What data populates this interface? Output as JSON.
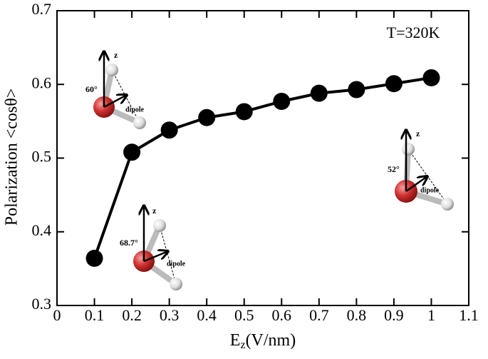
{
  "chart_data": {
    "type": "line",
    "xlabel": [
      "E",
      "z",
      "(V/nm)"
    ],
    "ylabel": "Polarization <cosθ>",
    "x": [
      0.1,
      0.2,
      0.3,
      0.4,
      0.5,
      0.6,
      0.7,
      0.8,
      0.9,
      1.0
    ],
    "series": [
      {
        "color": "#000000",
        "values": [
          0.364,
          0.508,
          0.538,
          0.555,
          0.563,
          0.577,
          0.588,
          0.593,
          0.601,
          0.609
        ]
      }
    ],
    "xlim": [
      0,
      1.1
    ],
    "xticks": [
      0,
      0.1,
      0.2,
      0.3,
      0.4,
      0.5,
      0.6,
      0.7,
      0.8,
      0.9,
      1,
      1.1
    ],
    "ylim": [
      0.3,
      0.7
    ],
    "yticks": [
      0.3,
      0.4,
      0.5,
      0.6,
      0.7
    ],
    "annotations": {
      "temperature": "T=320K",
      "inset_60": {
        "axis": "z",
        "angle": "60°",
        "dipole": "dipole"
      },
      "inset_68": {
        "axis": "z",
        "angle": "68.7°",
        "dipole": "dipole"
      },
      "inset_52": {
        "axis": "z",
        "angle": "52°",
        "dipole": "dipole"
      }
    }
  }
}
